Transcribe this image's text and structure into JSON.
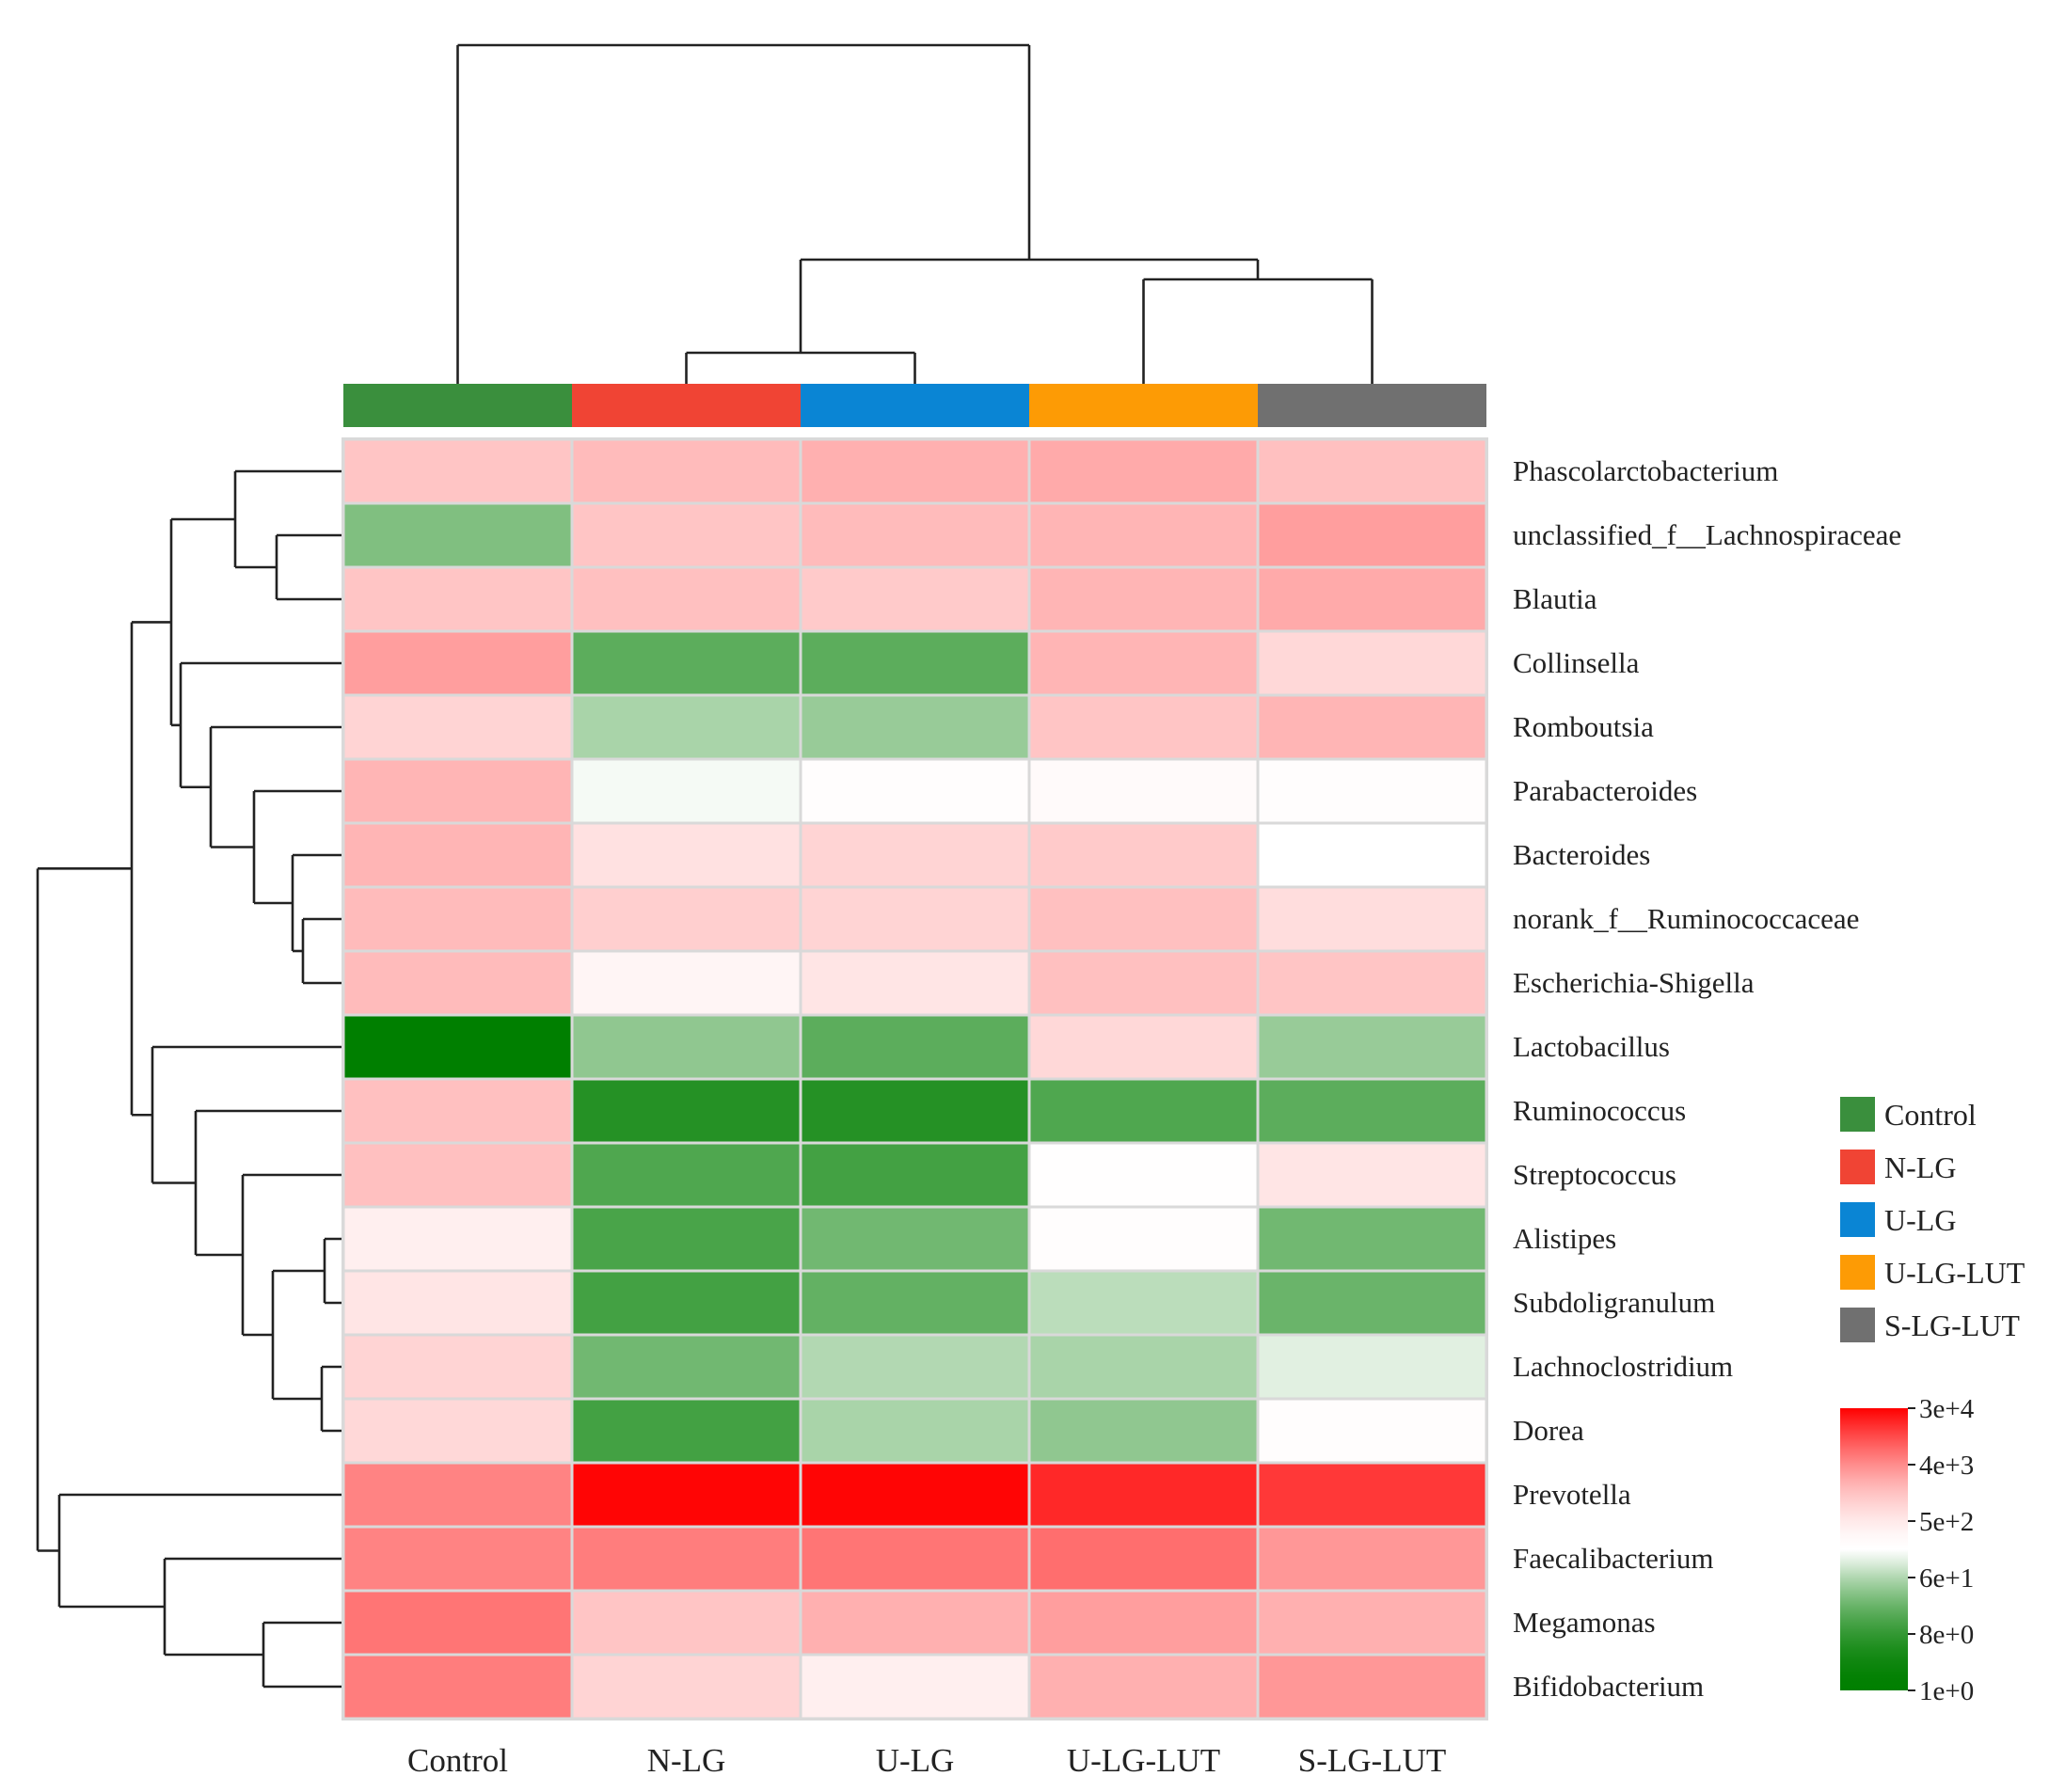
{
  "chart_data": {
    "type": "heatmap",
    "title": "",
    "columns": [
      "Control",
      "N-LG",
      "U-LG",
      "U-LG-LUT",
      "S-LG-LUT"
    ],
    "rows": [
      "Phascolarctobacterium",
      "unclassified_f__Lachnospiraceae",
      "Blautia",
      "Collinsella",
      "Romboutsia",
      "Parabacteroides",
      "Bacteroides",
      "norank_f__Ruminococcaceae",
      "Escherichia-Shigella",
      "Lactobacillus",
      "Ruminococcus",
      "Streptococcus",
      "Alistipes",
      "Subdoligranulum",
      "Lachnoclostridium",
      "Dorea",
      "Prevotella",
      "Faecalibacterium",
      "Megamonas",
      "Bifidobacterium"
    ],
    "values_log10": [
      [
        3.1,
        3.2,
        3.3,
        3.35,
        3.15
      ],
      [
        1.5,
        3.1,
        3.2,
        3.25,
        3.45
      ],
      [
        3.1,
        3.15,
        3.05,
        3.25,
        3.35
      ],
      [
        3.45,
        1.25,
        1.25,
        3.25,
        2.9
      ],
      [
        2.95,
        1.75,
        1.65,
        3.1,
        3.25
      ],
      [
        3.25,
        2.15,
        2.3,
        2.4,
        2.3
      ],
      [
        3.25,
        2.8,
        2.95,
        3.05,
        2.2
      ],
      [
        3.2,
        3.0,
        2.95,
        3.15,
        2.85
      ],
      [
        3.2,
        2.5,
        2.75,
        3.15,
        3.1
      ],
      [
        0.0,
        1.6,
        1.25,
        2.9,
        1.65
      ],
      [
        3.15,
        0.75,
        0.75,
        1.15,
        1.25
      ],
      [
        3.15,
        1.15,
        1.05,
        2.25,
        2.75
      ],
      [
        2.6,
        1.1,
        1.4,
        2.3,
        1.4
      ],
      [
        2.75,
        1.05,
        1.3,
        1.85,
        1.35
      ],
      [
        2.95,
        1.4,
        1.8,
        1.75,
        2.05
      ],
      [
        2.9,
        1.05,
        1.75,
        1.6,
        2.3
      ],
      [
        3.65,
        4.45,
        4.45,
        4.25,
        4.15
      ],
      [
        3.65,
        3.7,
        3.75,
        3.8,
        3.5
      ],
      [
        3.75,
        3.1,
        3.3,
        3.45,
        3.3
      ],
      [
        3.7,
        2.95,
        2.6,
        3.3,
        3.5
      ]
    ],
    "color_scale": {
      "low": "#007f00",
      "mid": "#ffffff",
      "high": "#ff0000",
      "mid_log10": 2.2,
      "min_log10": 0,
      "max_log10": 4.48
    },
    "scale_ticks": [
      "3e+4",
      "4e+3",
      "5e+2",
      "6e+1",
      "8e+0",
      "1e+0"
    ],
    "group_colors": {
      "Control": "#3a8f3d",
      "N-LG": "#f04434",
      "U-LG": "#0a85d4",
      "U-LG-LUT": "#fd9b05",
      "S-LG-LUT": "#707070"
    },
    "legend": [
      {
        "name": "Control",
        "color": "#3a8f3d"
      },
      {
        "name": "N-LG",
        "color": "#f04434"
      },
      {
        "name": "U-LG",
        "color": "#0a85d4"
      },
      {
        "name": "U-LG-LUT",
        "color": "#fd9b05"
      },
      {
        "name": "S-LG-LUT",
        "color": "#707070"
      }
    ]
  }
}
